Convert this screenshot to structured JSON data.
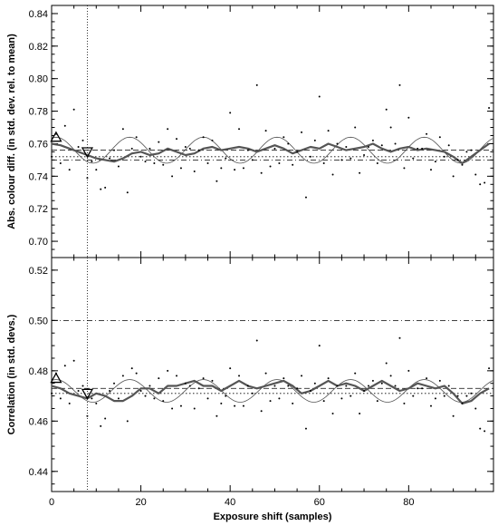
{
  "chart_data": [
    {
      "type": "scatter",
      "panel": "top",
      "ylabel": "Abs. colour diff. (in std. dev. rel. to mean)",
      "xlabel": "",
      "xlim": [
        0,
        99
      ],
      "ylim": [
        0.69,
        0.845
      ],
      "yticks": [
        0.7,
        0.72,
        0.74,
        0.76,
        0.78,
        0.8,
        0.82,
        0.84
      ],
      "ytick_labels": [
        "0.70",
        "0.72",
        "0.74",
        "0.76",
        "0.78",
        "0.80",
        "0.82",
        "0.84"
      ],
      "hlines": [
        {
          "style": "dashed",
          "y": 0.756
        },
        {
          "style": "dash-dot",
          "y": 0.75
        },
        {
          "style": "dotted",
          "y": 0.752
        }
      ],
      "vline": {
        "style": "dotted",
        "x": 8
      },
      "markers": [
        {
          "shape": "triangle-up",
          "x": 1,
          "y": 0.764
        },
        {
          "shape": "triangle-down",
          "x": 8,
          "y": 0.755
        }
      ],
      "sine_fit": {
        "mean": 0.756,
        "amplitude": 0.008,
        "period": 16.5,
        "phase_x": 1
      },
      "smooth_line": {
        "x": [
          0,
          2,
          4,
          6,
          8,
          10,
          12,
          14,
          16,
          18,
          20,
          22,
          24,
          26,
          28,
          30,
          32,
          34,
          36,
          38,
          40,
          42,
          44,
          46,
          48,
          50,
          52,
          54,
          56,
          58,
          60,
          62,
          64,
          66,
          68,
          70,
          72,
          74,
          76,
          78,
          80,
          82,
          84,
          86,
          88,
          90,
          92,
          94,
          96,
          98
        ],
        "y": [
          0.76,
          0.759,
          0.757,
          0.755,
          0.753,
          0.751,
          0.75,
          0.749,
          0.751,
          0.754,
          0.755,
          0.753,
          0.754,
          0.757,
          0.755,
          0.753,
          0.754,
          0.757,
          0.758,
          0.756,
          0.757,
          0.758,
          0.757,
          0.755,
          0.757,
          0.759,
          0.757,
          0.754,
          0.756,
          0.758,
          0.757,
          0.76,
          0.758,
          0.756,
          0.757,
          0.758,
          0.76,
          0.757,
          0.755,
          0.757,
          0.758,
          0.756,
          0.757,
          0.756,
          0.755,
          0.752,
          0.748,
          0.752,
          0.756,
          0.76
        ]
      },
      "points": {
        "x": [
          0,
          1,
          2,
          3,
          4,
          5,
          6,
          7,
          8,
          9,
          10,
          11,
          12,
          13,
          14,
          15,
          16,
          17,
          18,
          19,
          20,
          21,
          22,
          23,
          24,
          25,
          26,
          27,
          28,
          29,
          30,
          31,
          32,
          33,
          34,
          35,
          36,
          37,
          38,
          39,
          40,
          41,
          42,
          43,
          44,
          45,
          46,
          47,
          48,
          49,
          50,
          51,
          52,
          53,
          54,
          55,
          56,
          57,
          58,
          59,
          60,
          61,
          62,
          63,
          64,
          65,
          66,
          67,
          68,
          69,
          70,
          71,
          72,
          73,
          74,
          75,
          76,
          77,
          78,
          79,
          80,
          81,
          82,
          83,
          84,
          85,
          86,
          87,
          88,
          89,
          90,
          91,
          92,
          93,
          94,
          95,
          96,
          97,
          98
        ],
        "y": [
          0.752,
          0.766,
          0.748,
          0.771,
          0.744,
          0.781,
          0.758,
          0.762,
          0.739,
          0.749,
          0.744,
          0.732,
          0.733,
          0.751,
          0.756,
          0.746,
          0.769,
          0.73,
          0.757,
          0.764,
          0.752,
          0.749,
          0.757,
          0.748,
          0.761,
          0.747,
          0.769,
          0.74,
          0.763,
          0.745,
          0.758,
          0.757,
          0.743,
          0.756,
          0.764,
          0.748,
          0.762,
          0.737,
          0.745,
          0.751,
          0.779,
          0.744,
          0.769,
          0.745,
          0.756,
          0.75,
          0.796,
          0.742,
          0.768,
          0.746,
          0.757,
          0.748,
          0.764,
          0.76,
          0.747,
          0.755,
          0.767,
          0.727,
          0.752,
          0.762,
          0.789,
          0.748,
          0.768,
          0.741,
          0.76,
          0.75,
          0.758,
          0.751,
          0.77,
          0.742,
          0.753,
          0.758,
          0.762,
          0.748,
          0.759,
          0.781,
          0.77,
          0.76,
          0.796,
          0.745,
          0.776,
          0.751,
          0.757,
          0.757,
          0.766,
          0.744,
          0.749,
          0.764,
          0.752,
          0.759,
          0.74,
          0.75,
          0.747,
          0.755,
          0.756,
          0.741,
          0.735,
          0.736,
          0.782
        ]
      },
      "xticks": [
        0,
        20,
        40,
        60,
        80
      ],
      "xtick_labels": []
    },
    {
      "type": "scatter",
      "panel": "bottom",
      "ylabel": "Correlation (in std. devs.)",
      "xlabel": "Exposure shift (samples)",
      "xlim": [
        0,
        99
      ],
      "ylim": [
        0.432,
        0.525
      ],
      "yticks": [
        0.44,
        0.46,
        0.48,
        0.5,
        0.52
      ],
      "ytick_labels": [
        "0.44",
        "0.46",
        "0.48",
        "0.50",
        "0.52"
      ],
      "hlines": [
        {
          "style": "dash-dot",
          "y": 0.5
        },
        {
          "style": "dashed",
          "y": 0.473
        },
        {
          "style": "dotted",
          "y": 0.471
        }
      ],
      "vline": {
        "style": "dotted",
        "x": 8
      },
      "markers": [
        {
          "shape": "triangle-up",
          "x": 1,
          "y": 0.477
        },
        {
          "shape": "triangle-down",
          "x": 8,
          "y": 0.471
        }
      ],
      "sine_fit": {
        "mean": 0.472,
        "amplitude": 0.0045,
        "period": 16.5,
        "phase_x": 1
      },
      "smooth_line": {
        "x": [
          0,
          2,
          4,
          6,
          8,
          10,
          12,
          14,
          16,
          18,
          20,
          22,
          24,
          26,
          28,
          30,
          32,
          34,
          36,
          38,
          40,
          42,
          44,
          46,
          48,
          50,
          52,
          54,
          56,
          58,
          60,
          62,
          64,
          66,
          68,
          70,
          72,
          74,
          76,
          78,
          80,
          82,
          84,
          86,
          88,
          90,
          92,
          94,
          96,
          98
        ],
        "y": [
          0.474,
          0.473,
          0.471,
          0.47,
          0.469,
          0.471,
          0.47,
          0.468,
          0.468,
          0.47,
          0.473,
          0.473,
          0.471,
          0.474,
          0.474,
          0.475,
          0.476,
          0.474,
          0.474,
          0.472,
          0.474,
          0.476,
          0.474,
          0.473,
          0.474,
          0.475,
          0.476,
          0.474,
          0.471,
          0.472,
          0.474,
          0.476,
          0.474,
          0.475,
          0.474,
          0.472,
          0.474,
          0.476,
          0.474,
          0.472,
          0.473,
          0.475,
          0.474,
          0.473,
          0.474,
          0.471,
          0.467,
          0.468,
          0.471,
          0.473
        ]
      },
      "points": {
        "x": [
          0,
          1,
          2,
          3,
          4,
          5,
          6,
          7,
          8,
          9,
          10,
          11,
          12,
          13,
          14,
          15,
          16,
          17,
          18,
          19,
          20,
          21,
          22,
          23,
          24,
          25,
          26,
          27,
          28,
          29,
          30,
          31,
          32,
          33,
          34,
          35,
          36,
          37,
          38,
          39,
          40,
          41,
          42,
          43,
          44,
          45,
          46,
          47,
          48,
          49,
          50,
          51,
          52,
          53,
          54,
          55,
          56,
          57,
          58,
          59,
          60,
          61,
          62,
          63,
          64,
          65,
          66,
          67,
          68,
          69,
          70,
          71,
          72,
          73,
          74,
          75,
          76,
          77,
          78,
          79,
          80,
          81,
          82,
          83,
          84,
          85,
          86,
          87,
          88,
          89,
          90,
          91,
          92,
          93,
          94,
          95,
          96,
          97,
          98
        ],
        "y": [
          0.471,
          0.479,
          0.469,
          0.482,
          0.467,
          0.484,
          0.472,
          0.474,
          0.462,
          0.469,
          0.467,
          0.458,
          0.461,
          0.472,
          0.475,
          0.469,
          0.478,
          0.46,
          0.481,
          0.479,
          0.472,
          0.47,
          0.474,
          0.469,
          0.477,
          0.468,
          0.48,
          0.465,
          0.478,
          0.466,
          0.475,
          0.474,
          0.465,
          0.473,
          0.477,
          0.469,
          0.476,
          0.462,
          0.467,
          0.47,
          0.481,
          0.466,
          0.478,
          0.466,
          0.474,
          0.471,
          0.492,
          0.464,
          0.479,
          0.468,
          0.474,
          0.469,
          0.477,
          0.474,
          0.467,
          0.473,
          0.478,
          0.457,
          0.472,
          0.475,
          0.49,
          0.468,
          0.477,
          0.463,
          0.474,
          0.469,
          0.474,
          0.47,
          0.479,
          0.463,
          0.472,
          0.474,
          0.476,
          0.468,
          0.475,
          0.483,
          0.478,
          0.474,
          0.493,
          0.467,
          0.48,
          0.47,
          0.473,
          0.473,
          0.477,
          0.466,
          0.469,
          0.476,
          0.47,
          0.474,
          0.462,
          0.47,
          0.467,
          0.47,
          0.471,
          0.465,
          0.457,
          0.456,
          0.481
        ]
      },
      "xticks": [
        0,
        20,
        40,
        60,
        80
      ],
      "xtick_labels": [
        "0",
        "20",
        "40",
        "60",
        "80"
      ]
    }
  ]
}
